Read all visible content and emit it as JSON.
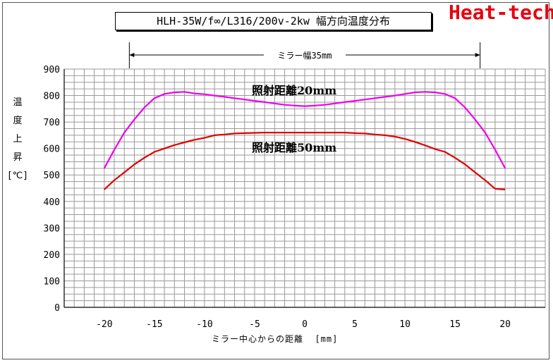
{
  "header": {
    "title": "HLH-35W/f∞/L316/200v-2kw 幅方向温度分布",
    "brand": "Heat-tech",
    "brand_color": "#e8000f"
  },
  "chart_data": {
    "type": "line",
    "ylabel_chars": [
      "温",
      "度",
      "上",
      "昇",
      "[℃]"
    ],
    "xlabel": "ミラー中心からの距離  [mm]",
    "xlim": [
      -24,
      24
    ],
    "ylim": [
      0,
      900
    ],
    "xticks": [
      -20,
      -15,
      -10,
      -5,
      0,
      5,
      10,
      15,
      20
    ],
    "yticks": [
      0,
      100,
      200,
      300,
      400,
      500,
      600,
      700,
      800,
      900
    ],
    "grid": true,
    "dimension": {
      "label": "ミラー幅35mm",
      "from": -17.5,
      "to": 17.5
    },
    "series": [
      {
        "name": "照射距離20mm",
        "color": "#ee00ee",
        "x": [
          -20,
          -19,
          -18,
          -17,
          -16,
          -15,
          -14,
          -13,
          -12,
          -11,
          -10,
          -9,
          -8,
          -7,
          -6,
          -5,
          -4,
          -3,
          -2,
          -1,
          0,
          1,
          2,
          3,
          4,
          5,
          6,
          7,
          8,
          9,
          10,
          11,
          12,
          13,
          14,
          15,
          16,
          17,
          18,
          19,
          20
        ],
        "y": [
          525,
          595,
          660,
          710,
          755,
          790,
          806,
          812,
          814,
          808,
          805,
          800,
          795,
          790,
          785,
          780,
          775,
          770,
          765,
          762,
          760,
          762,
          765,
          770,
          775,
          780,
          785,
          790,
          795,
          800,
          806,
          812,
          814,
          812,
          806,
          790,
          755,
          710,
          660,
          595,
          525
        ]
      },
      {
        "name": "照射距離50mm",
        "color": "#e00000",
        "x": [
          -20,
          -19,
          -18,
          -17,
          -16,
          -15,
          -14,
          -13,
          -12,
          -11,
          -10,
          -9,
          -8,
          -7,
          -6,
          -5,
          -4,
          -3,
          -2,
          -1,
          0,
          1,
          2,
          3,
          4,
          5,
          6,
          7,
          8,
          9,
          10,
          11,
          12,
          13,
          14,
          15,
          16,
          17,
          18,
          19,
          20
        ],
        "y": [
          445,
          480,
          510,
          540,
          565,
          587,
          600,
          613,
          623,
          633,
          640,
          650,
          653,
          657,
          658,
          659,
          660,
          660,
          660,
          660,
          660,
          660,
          660,
          660,
          660,
          658,
          657,
          653,
          650,
          645,
          636,
          625,
          612,
          598,
          587,
          565,
          540,
          510,
          480,
          448,
          445
        ]
      }
    ]
  }
}
